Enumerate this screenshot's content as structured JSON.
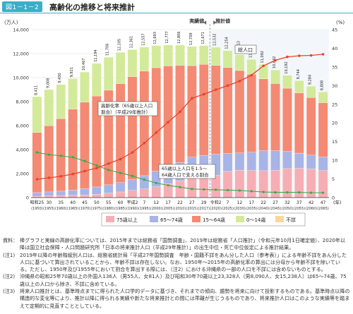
{
  "figure": {
    "label": "図1－1－2",
    "title": "高齢化の推移と将来推計"
  },
  "chart_data": {
    "type": "bar",
    "stacked": true,
    "left_unit": "(万人)",
    "right_unit": "(%)",
    "xunit": "(年)",
    "yticks": [
      "0",
      "2,000",
      "4,000",
      "6,000",
      "8,000",
      "10,000",
      "12,000",
      "14,000"
    ],
    "ylim": [
      0,
      14000
    ],
    "y2ticks": [
      "0",
      "5",
      "10",
      "15",
      "20",
      "25",
      "30",
      "35",
      "40",
      "45"
    ],
    "y2lim": [
      0,
      45
    ],
    "phase_actual": "実績値",
    "phase_projection": "推計値",
    "total_pop_label": "総人口",
    "line_label_1": "高齢化率（65歳以上人口",
    "line_label_2": "割合）（平成29年推計）",
    "ratio_label_1": "65歳以上人口を1.5～",
    "ratio_label_2": "64歳人口で支える割合",
    "categories": [
      {
        "era": "昭和25",
        "year": "(1950)"
      },
      {
        "era": "30",
        "year": "(1955)"
      },
      {
        "era": "35",
        "year": "(1960)"
      },
      {
        "era": "40",
        "year": "(1965)"
      },
      {
        "era": "45",
        "year": "(1970)"
      },
      {
        "era": "50",
        "year": "(1975)"
      },
      {
        "era": "55",
        "year": "(1980)"
      },
      {
        "era": "60",
        "year": "(1985)"
      },
      {
        "era": "平成2",
        "year": "(1990)"
      },
      {
        "era": "7",
        "year": "(1995)"
      },
      {
        "era": "12",
        "year": "(2000)"
      },
      {
        "era": "17",
        "year": "(2005)"
      },
      {
        "era": "22",
        "year": "(2010)"
      },
      {
        "era": "27",
        "year": "(2015)"
      },
      {
        "era": "29",
        "year": "(2017)"
      },
      {
        "era": "令和2",
        "year": "(2020)"
      },
      {
        "era": "7",
        "year": "(2025)"
      },
      {
        "era": "12",
        "year": "(2030)"
      },
      {
        "era": "17",
        "year": "(2035)"
      },
      {
        "era": "22",
        "year": "(2040)"
      },
      {
        "era": "27",
        "year": "(2045)"
      },
      {
        "era": "32",
        "year": "(2050)"
      },
      {
        "era": "37",
        "year": "(2055)"
      },
      {
        "era": "42",
        "year": "(2060)"
      },
      {
        "era": "47",
        "year": "(2065)"
      }
    ],
    "projection_start_index": 15,
    "totals": [
      "8,411",
      "9,008",
      "9,430",
      "9,921",
      "10,467",
      "11,194",
      "11,706",
      "12,105",
      "12,361",
      "12,557",
      "12,693",
      "12,777",
      "12,806",
      "12,709",
      "12,671",
      "12,532",
      "12,254",
      "11,913",
      "11,522",
      "11,092",
      "10,642",
      "10,192",
      "9,744",
      "9,284",
      "8,808"
    ],
    "series": [
      {
        "name": "75歳以上",
        "color": "#f6aeb4",
        "values": [
          107,
          139,
          163,
          189,
          224,
          284,
          366,
          471,
          599,
          717,
          900,
          1160,
          1407,
          1613,
          1748,
          1872,
          2180,
          2288,
          2260,
          2239,
          2277,
          2417,
          2446,
          2387,
          2248
        ]
      },
      {
        "name": "65～74歳",
        "color": "#a8b4e6",
        "values": [
          309,
          336,
          373,
          435,
          516,
          603,
          699,
          776,
          894,
          1109,
          1301,
          1407,
          1517,
          1755,
          1767,
          1747,
          1497,
          1428,
          1522,
          1681,
          1643,
          1424,
          1258,
          1154,
          1133
        ]
      },
      {
        "name": "15～64歳",
        "color": "#f48a73",
        "values": [
          5017,
          5517,
          6047,
          6744,
          7212,
          7581,
          7883,
          8251,
          8590,
          8716,
          8622,
          8409,
          8103,
          7629,
          7596,
          7406,
          7170,
          6875,
          6494,
          5978,
          5584,
          5275,
          5028,
          4793,
          4529
        ]
      },
      {
        "name": "0～14歳",
        "color": "#d3ea9a",
        "values": [
          2979,
          3012,
          2843,
          2553,
          2515,
          2722,
          2751,
          2603,
          2249,
          2001,
          1847,
          1752,
          1680,
          1595,
          1559,
          1507,
          1407,
          1321,
          1246,
          1194,
          1138,
          1077,
          1012,
          951,
          898
        ]
      },
      {
        "name": "不詳",
        "color": "#fbd79b",
        "values": [
          0,
          0,
          0,
          0,
          0,
          0,
          0,
          0,
          0,
          0,
          0,
          0,
          0,
          0,
          0,
          0,
          0,
          0,
          0,
          0,
          0,
          0,
          0,
          0,
          0
        ]
      }
    ],
    "line_aging": {
      "name": "高齢化率",
      "color": "#e8432c",
      "values": [
        4.9,
        5.3,
        5.7,
        6.3,
        7.1,
        7.9,
        9.1,
        10.3,
        12.1,
        14.6,
        17.4,
        20.2,
        23.0,
        26.6,
        27.7,
        28.9,
        30.0,
        31.2,
        32.8,
        35.3,
        36.8,
        37.7,
        38.0,
        38.1,
        38.4
      ]
    },
    "line_support": {
      "name": "15～64歳人口／65歳以上人口",
      "color": "#3aa84a",
      "values": [
        12.1,
        11.5,
        11.2,
        10.8,
        9.8,
        8.6,
        7.4,
        6.6,
        5.8,
        4.8,
        3.9,
        3.3,
        2.8,
        2.3,
        2.2,
        2.1,
        2.0,
        1.9,
        1.7,
        1.5,
        1.4,
        1.4,
        1.4,
        1.3,
        1.3
      ]
    },
    "legend": {
      "position": "bottom"
    }
  },
  "notes": [
    {
      "key": "資料：",
      "text": "棒グラフと実線の高齢化率については、2015年までは総務省「国勢調査」、2019年は総務省「人口推計」（令和元年10月1日確定値）、2020年以降は国立社会保障・人口問題研究所「日本の将来推計人口（平成29年推計）」の出生中位・死亡中位仮定による推計結果。"
    },
    {
      "key": "(注1)",
      "text": "2019年以降の年齢階級別人口は、総務省統計局「平成27年国勢調査　年齢・国籍不詳をあん分した人口（参考表）」による年齢不詳をあん分した人口に基づいて算出されていることから、年齢不詳は存在しない。なお、1950年～2015年の高齢化率の算出には分母から年齢不詳を除いている。ただし、1950年及び1955年において割合を算出する際には、（注2）における沖縄県の一部の人口を不詳には含めないものとする。"
    },
    {
      "key": "(注2)",
      "text": "沖縄県の昭和25年70歳以上の外国人136人（男55人、女81人）及び昭和30年70歳以上23,328人（男8,090人、女15,238人）は65～74歳、75歳以上の人口から除き、不詳に含めている。"
    },
    {
      "key": "(注3)",
      "text": "将来人口推計とは、基準時点までに得られた人口学的データに基づき、それまでの傾向、趨勢を将来に向けて投影するものである。基準時点以降の構造的な変化等により、推計以降に得られる実績や新たな将来推計との間には乖離が生じうるものであり、将来推計人口はこのような実績等を踏まえて定期的に見直すこととしている。"
    }
  ]
}
